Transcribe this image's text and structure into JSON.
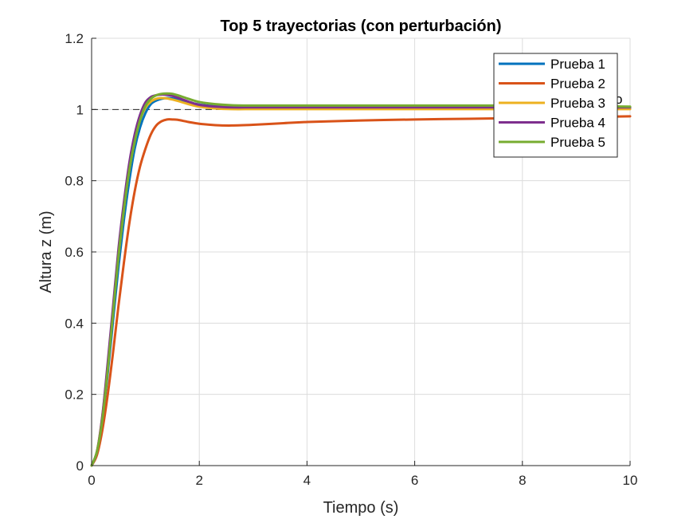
{
  "chart_data": {
    "type": "line",
    "title": "Top 5 trayectorias (con perturbación)",
    "xlabel": "Tiempo (s)",
    "ylabel": "Altura z (m)",
    "xlim": [
      0,
      10
    ],
    "ylim": [
      0,
      1.2
    ],
    "xticks": [
      0,
      2,
      4,
      6,
      8,
      10
    ],
    "yticks": [
      0,
      0.2,
      0.4,
      0.6,
      0.8,
      1,
      1.2
    ],
    "xtick_labels": [
      "0",
      "2",
      "4",
      "6",
      "8",
      "10"
    ],
    "ytick_labels": [
      "0",
      "0.2",
      "0.4",
      "0.6",
      "0.8",
      "1",
      "1.2"
    ],
    "grid": true,
    "legend_position": "top-right",
    "reference_line": {
      "y": 1.0,
      "style": "dashed",
      "color": "#262626"
    },
    "legend_overflow_text": "o",
    "series": [
      {
        "name": "Prueba 1",
        "color": "#0072BD",
        "x": [
          0,
          0.1,
          0.2,
          0.3,
          0.4,
          0.5,
          0.6,
          0.7,
          0.8,
          0.9,
          1.0,
          1.1,
          1.2,
          1.3,
          1.4,
          1.5,
          1.6,
          1.8,
          2.0,
          2.3,
          2.6,
          3.0,
          3.5,
          4,
          5,
          6,
          7,
          8,
          9,
          10
        ],
        "y": [
          0,
          0.04,
          0.13,
          0.26,
          0.41,
          0.56,
          0.69,
          0.8,
          0.89,
          0.95,
          0.99,
          1.015,
          1.025,
          1.03,
          1.032,
          1.031,
          1.028,
          1.02,
          1.014,
          1.009,
          1.007,
          1.006,
          1.005,
          1.005,
          1.005,
          1.005,
          1.005,
          1.005,
          1.005,
          1.005
        ]
      },
      {
        "name": "Prueba 2",
        "color": "#D95319",
        "x": [
          0,
          0.1,
          0.2,
          0.3,
          0.4,
          0.5,
          0.6,
          0.7,
          0.8,
          0.9,
          1.0,
          1.1,
          1.2,
          1.3,
          1.4,
          1.5,
          1.6,
          1.8,
          2.0,
          2.3,
          2.6,
          3.0,
          3.5,
          4,
          5,
          6,
          7,
          8,
          9,
          10
        ],
        "y": [
          0,
          0.03,
          0.1,
          0.2,
          0.32,
          0.45,
          0.57,
          0.68,
          0.77,
          0.84,
          0.89,
          0.93,
          0.955,
          0.967,
          0.972,
          0.972,
          0.971,
          0.965,
          0.96,
          0.956,
          0.955,
          0.957,
          0.961,
          0.965,
          0.969,
          0.972,
          0.974,
          0.976,
          0.978,
          0.981
        ]
      },
      {
        "name": "Prueba 3",
        "color": "#EDB120",
        "x": [
          0,
          0.1,
          0.2,
          0.3,
          0.4,
          0.5,
          0.6,
          0.7,
          0.8,
          0.9,
          1.0,
          1.1,
          1.2,
          1.3,
          1.4,
          1.5,
          1.6,
          1.8,
          2.0,
          2.3,
          2.6,
          3.0,
          3.5,
          4,
          5,
          6,
          7,
          8,
          9,
          10
        ],
        "y": [
          0,
          0.04,
          0.14,
          0.28,
          0.44,
          0.59,
          0.72,
          0.83,
          0.91,
          0.97,
          1.005,
          1.022,
          1.03,
          1.032,
          1.031,
          1.028,
          1.024,
          1.015,
          1.008,
          1.003,
          1.001,
          1.001,
          1.001,
          1.001,
          1.001,
          1.001,
          1.001,
          1.001,
          1.001,
          1.001
        ]
      },
      {
        "name": "Prueba 4",
        "color": "#7E2F8E",
        "x": [
          0,
          0.1,
          0.2,
          0.3,
          0.4,
          0.5,
          0.6,
          0.7,
          0.8,
          0.9,
          1.0,
          1.1,
          1.2,
          1.3,
          1.4,
          1.5,
          1.6,
          1.8,
          2.0,
          2.3,
          2.6,
          3.0,
          3.5,
          4,
          5,
          6,
          7,
          8,
          9,
          10
        ],
        "y": [
          0,
          0.04,
          0.14,
          0.29,
          0.45,
          0.61,
          0.74,
          0.85,
          0.93,
          0.985,
          1.02,
          1.035,
          1.04,
          1.042,
          1.041,
          1.038,
          1.033,
          1.022,
          1.013,
          1.008,
          1.006,
          1.006,
          1.006,
          1.006,
          1.006,
          1.006,
          1.006,
          1.006,
          1.006,
          1.006
        ]
      },
      {
        "name": "Prueba 5",
        "color": "#77AC30",
        "x": [
          0,
          0.1,
          0.2,
          0.3,
          0.4,
          0.5,
          0.6,
          0.7,
          0.8,
          0.9,
          1.0,
          1.1,
          1.2,
          1.3,
          1.4,
          1.5,
          1.6,
          1.8,
          2.0,
          2.3,
          2.6,
          3.0,
          3.5,
          4,
          5,
          6,
          7,
          8,
          9,
          10
        ],
        "y": [
          0,
          0.04,
          0.13,
          0.27,
          0.43,
          0.59,
          0.72,
          0.83,
          0.91,
          0.97,
          1.01,
          1.03,
          1.04,
          1.044,
          1.045,
          1.044,
          1.04,
          1.03,
          1.021,
          1.015,
          1.012,
          1.011,
          1.011,
          1.011,
          1.011,
          1.011,
          1.011,
          1.011,
          1.01,
          1.008
        ]
      }
    ]
  }
}
